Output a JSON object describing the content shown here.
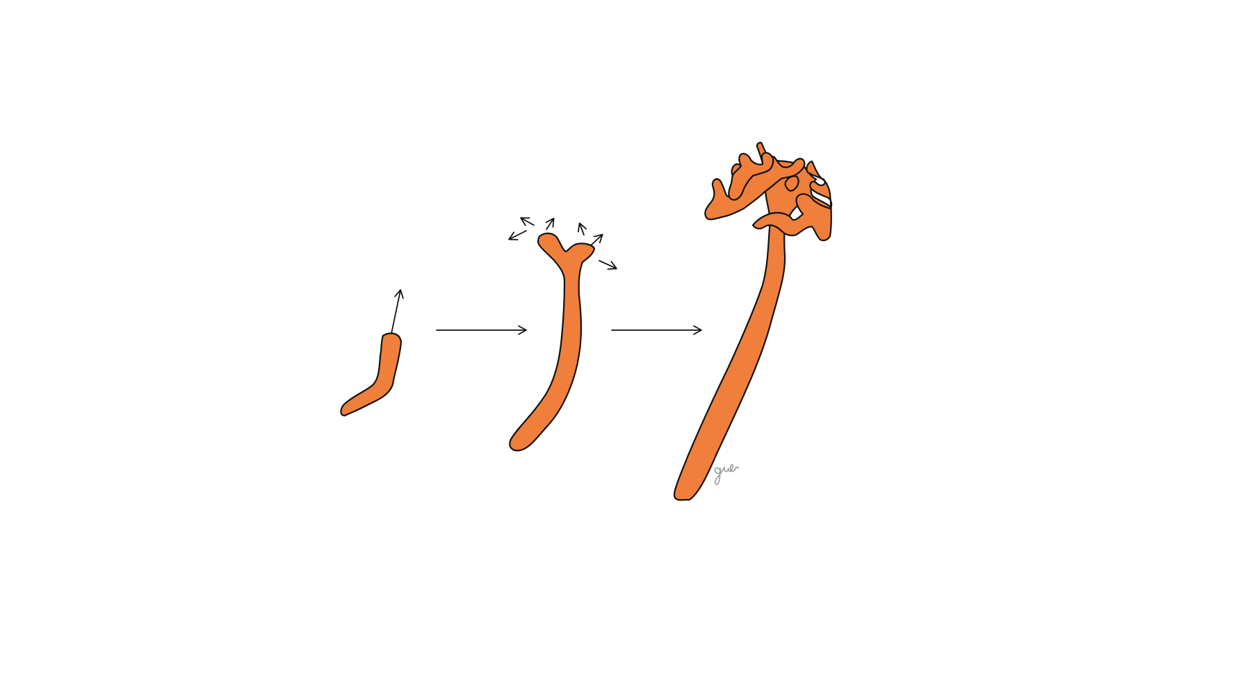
{
  "colors": {
    "background": "#ffffff",
    "growth_fill": "#ef7f3a",
    "outline": "#111111",
    "arrow": "#111111",
    "signature": "#9a9a9a"
  },
  "stages": [
    {
      "id": "stage-1",
      "description_icon": "short-bud-shape",
      "growth_arrows": 1
    },
    {
      "id": "stage-2",
      "description_icon": "forked-shoot-shape",
      "growth_arrows": 6
    },
    {
      "id": "stage-3",
      "description_icon": "branched-tree-shape",
      "growth_arrows": 0
    }
  ],
  "transitions": [
    {
      "from": "stage-1",
      "to": "stage-2",
      "icon": "right-arrow-icon"
    },
    {
      "from": "stage-2",
      "to": "stage-3",
      "icon": "right-arrow-icon"
    }
  ],
  "signature": {
    "icon": "artist-signature-icon"
  }
}
